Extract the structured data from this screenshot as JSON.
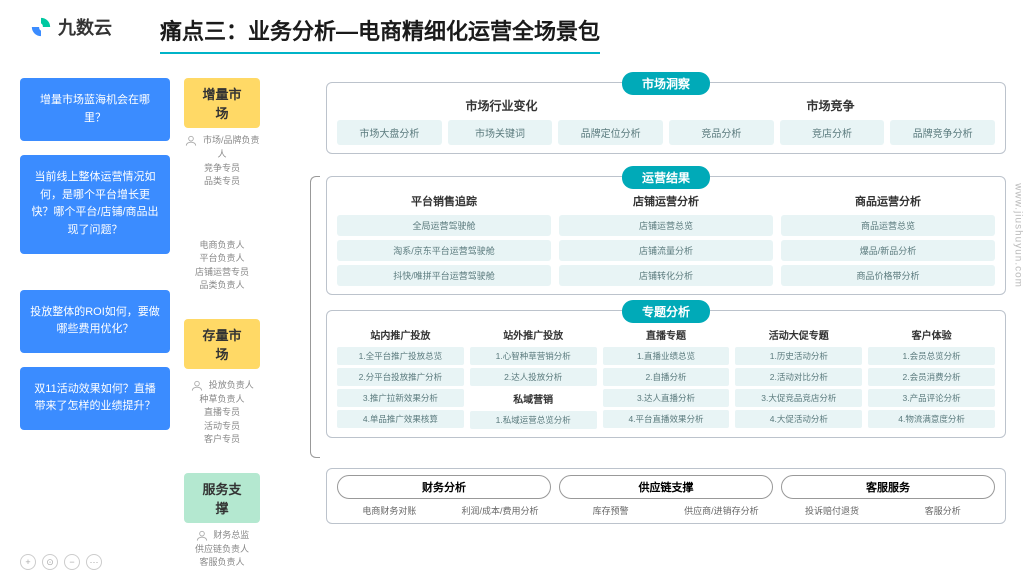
{
  "brand": {
    "name": "九数云"
  },
  "title": "痛点三：业务分析—电商精细化运营全场景包",
  "watermark": "www.jiushuyun.com",
  "colors": {
    "primary_blue": "#3b8cff",
    "teal": "#00aab8",
    "tag_yellow": "#ffd966",
    "tag_green": "#b4e8d0",
    "pill_bg": "#e8f4f5",
    "pill_text": "#5a7a7d",
    "border": "#bcc3cc"
  },
  "questions": [
    "增量市场蓝海机会在哪里？",
    "当前线上整体运营情况如何，是哪个平台增长更快？哪个平台/店铺/商品出现了问题？",
    "投放整体的ROI如何，要做哪些费用优化？",
    "双11活动效果如何？直播带来了怎样的业绩提升？"
  ],
  "segments": [
    {
      "label": "增量市场",
      "roles": [
        "市场/品牌负责人",
        "竞争专员",
        "品类专员"
      ],
      "color": "tag-yellow"
    },
    {
      "label": "存量市场",
      "roles": [
        "电商负责人",
        "平台负责人",
        "店铺运营专员",
        "品类负责人"
      ],
      "roles2": [
        "投放负责人",
        "种草负责人",
        "直播专员",
        "活动专员",
        "客户专员"
      ],
      "color": "tag-yellow"
    },
    {
      "label": "服务支撑",
      "roles": [
        "财务总监",
        "供应链负责人",
        "客服负责人"
      ],
      "color": "tag-green"
    }
  ],
  "panel1": {
    "badge": "市场洞察",
    "sections": [
      "市场行业变化",
      "市场竞争"
    ],
    "pills": [
      "市场大盘分析",
      "市场关键词",
      "品牌定位分析",
      "竞品分析",
      "竞店分析",
      "品牌竞争分析"
    ]
  },
  "panel2": {
    "badge": "运营结果",
    "cols": [
      {
        "h": "平台销售追踪",
        "items": [
          "全局运营驾驶舱",
          "淘系/京东平台运营驾驶舱",
          "抖快/唯拼平台运营驾驶舱"
        ]
      },
      {
        "h": "店铺运营分析",
        "items": [
          "店铺运营总览",
          "店铺流量分析",
          "店铺转化分析"
        ]
      },
      {
        "h": "商品运营分析",
        "items": [
          "商品运营总览",
          "爆品/新品分析",
          "商品价格带分析"
        ]
      }
    ]
  },
  "panel3": {
    "badge": "专题分析",
    "cols": [
      {
        "h": "站内推广投放",
        "items": [
          "1.全平台推广投放总览",
          "2.分平台投放推广分析",
          "3.推广拉新效果分析",
          "4.单品推广效果核算"
        ]
      },
      {
        "h": "站外推广投放",
        "items": [
          "1.心智种草营销分析",
          "2.达人投放分析",
          "私域营销",
          "1.私域运营总览分析"
        ],
        "specialHead": 2
      },
      {
        "h": "直播专题",
        "items": [
          "1.直播业绩总览",
          "2.自播分析",
          "3.达人直播分析",
          "4.平台直播效果分析"
        ]
      },
      {
        "h": "活动大促专题",
        "items": [
          "1.历史活动分析",
          "2.活动对比分析",
          "3.大促竞品竞店分析",
          "4.大促活动分析"
        ]
      },
      {
        "h": "客户体验",
        "items": [
          "1.会员总览分析",
          "2.会员消费分析",
          "3.产品评论分析",
          "4.物流满意度分析"
        ]
      }
    ]
  },
  "panel4": {
    "heads": [
      "财务分析",
      "供应链支撑",
      "客服服务"
    ],
    "items": [
      "电商财务对账",
      "利润/成本/费用分析",
      "库存预警",
      "供应商/进销存分析",
      "投诉赔付退货",
      "客服分析"
    ]
  }
}
